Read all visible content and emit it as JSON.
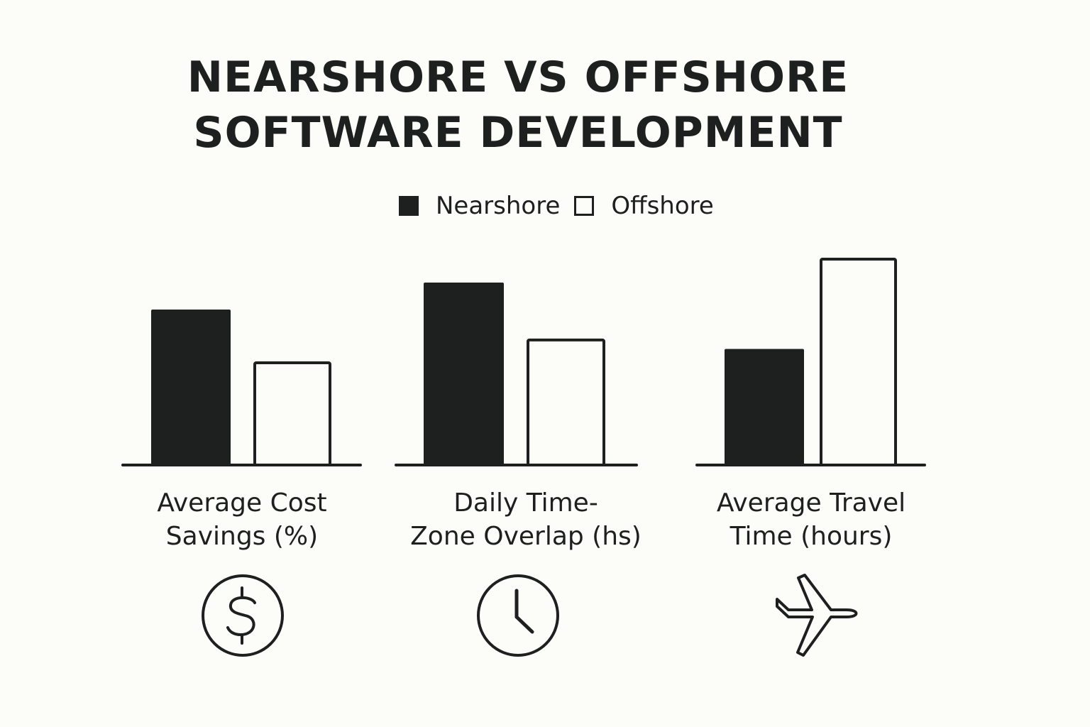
{
  "chart_data": {
    "type": "bar",
    "title_lines": [
      "NEARSHORE VS OFFSHORE",
      "SOFTWARE DEVELOPMENT"
    ],
    "legend": {
      "placement": "top-center",
      "items": [
        {
          "name": "Nearshore",
          "style": "filled"
        },
        {
          "name": "Offshore",
          "style": "hollow"
        }
      ]
    },
    "groups": [
      {
        "label_lines": [
          "Average Cost",
          "Savings (%)"
        ],
        "icon": "dollar-circle-icon"
      },
      {
        "label_lines": [
          "Daily Time-",
          "Zone Overlap (hs)"
        ],
        "icon": "clock-icon"
      },
      {
        "label_lines": [
          "Average Travel",
          "Time (hours)"
        ],
        "icon": "airplane-icon"
      }
    ],
    "series": [
      {
        "name": "Nearshore",
        "values": [
          0.75,
          0.88,
          0.56
        ]
      },
      {
        "name": "Offshore",
        "values": [
          0.5,
          0.61,
          1.0
        ]
      }
    ],
    "value_axis": "none (no axis labels or ticks; relative heights only)",
    "grid": false,
    "colors": {
      "ink": "#1e201f",
      "background": "#fcfcf8"
    }
  }
}
